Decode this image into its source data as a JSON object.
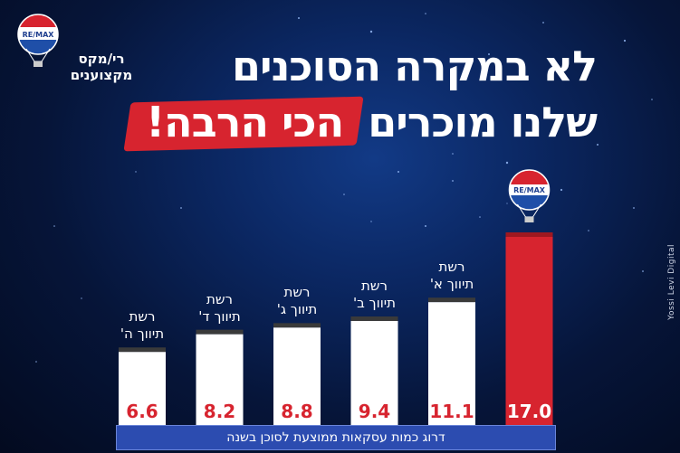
{
  "brand": {
    "logo_text": "RE/MAX",
    "name_line1": "רי/מקס",
    "name_line2": "מקצוענים"
  },
  "title": {
    "line1": "לא במקרה הסוכנים",
    "line2_prefix": "שלנו מוכרים",
    "line2_highlight": "הכי הרבה!"
  },
  "watermark": "Yossi Levi Digital",
  "colors": {
    "accent_red": "#d7242f",
    "bar_white": "#ffffff",
    "footer_blue": "#2c4cb0",
    "value_red": "#d7242f"
  },
  "chart_data": {
    "type": "bar",
    "categories": [
      "רשת\nתיווך ה'",
      "רשת\nתיווך ד'",
      "רשת\nתיווך ג'",
      "רשת\nתיווך ב'",
      "רשת\nתיווך א'",
      "RE/MAX"
    ],
    "values": [
      6.6,
      8.2,
      8.8,
      9.4,
      11.1,
      17.0
    ],
    "value_labels": [
      "6.6",
      "8.2",
      "8.8",
      "9.4",
      "11.1",
      "17.0"
    ],
    "highlight_index": 5,
    "xlabel": "דרוג כמות עסקאות ממוצעת לסוכן בשנה",
    "ylabel": "",
    "ylim": [
      0,
      17.0
    ]
  }
}
